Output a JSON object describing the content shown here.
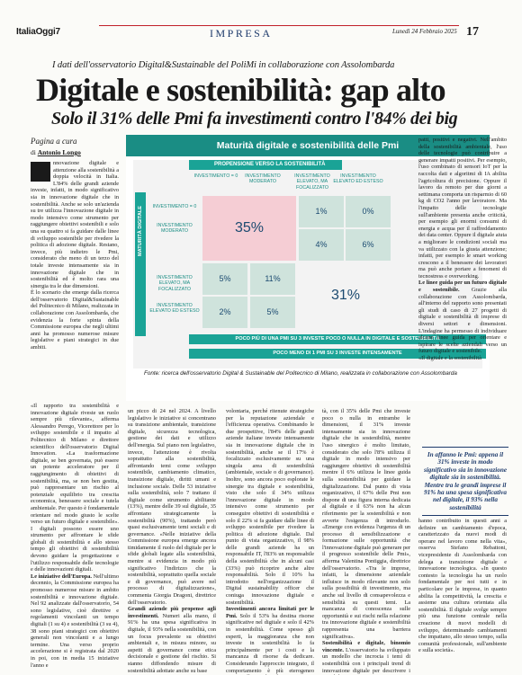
{
  "header": {
    "logo": "ItaliaOggi7",
    "section": "IMPRESA",
    "date": "Lunedì 24 Febbraio 2025",
    "page_number": "17"
  },
  "article": {
    "kicker": "I dati dell'osservatorio Digital&Sustainable del PoliMi in collaborazione con Assolombarda",
    "headline": "Digitale e sostenibilità: gap alto",
    "subhead": "Solo il 31% delle Pmi fa investimenti contro l'84% dei big",
    "page_ref": "Pagina a cura",
    "byline_prefix": "di ",
    "byline_author": "Antonio Longo",
    "col1_text": "nnovazione digitale e attenzione alla sostenibilità a doppia velocità in Italia. L'84% delle grandi aziende investe, infatti, in modo significativo sia in innovazione digitale che in sostenibilità. Anche se solo un'azienda su tre utilizza l'innovazione digitale in modo intensivo come strumento per raggiungere obiettivi sostenibili e solo una su quattro si fa guidare dalle linee di sviluppo sostenibile per rivedere la politica di adozione digitale. Restano, invece, più indietro le Pmi, considerato che meno di un terzo del totale investe intensamente sia in innovazione digitale che in sostenibilità ed è molto rara una sinergia tra le due dimensioni.",
    "col1_text_b": "È lo scenario che emerge dalla ricerca dell'osservatorio Digital&Sustainable del Politecnico di Milano, realizzata in collaborazione con Assolombarda, che evidenzia la forte spinta della Commissione europea che negli ultimi anni ha promosso numerose misure legislative e piani strategici in due ambiti.",
    "col2_text": "«Il rapporto tra sostenibilità e innovazione digitale riveste un ruolo sempre più rilevante», afferma Alessandro Perego, Vicerettore per lo sviluppo sostenibile e il impatto al Politecnico di Milano e direttore scientifico dell'osservatorio Digital Innovation. «La trasformazione digitale, se ben governata, può essere un potente acceleratore per il raggiungimento di obiettivi di sostenibilità, ma, se non ben gestita, può rappresentare un rischio al potenziale equilibrio tra crescita economica, benessere sociale e tutela ambientale. Per questo è fondamentale orientare nel modo giusto le scelte verso un futuro digitale e sostenibile». I digitali possono essere uno strumento per affrontare le sfide globali di sostenibilità e allo stesso tempo gli obiettivi di sostenibilità devono guidare la progettazione e l'utilizzo responsabile delle tecnologie e delle innovazioni digitali.",
    "col2_heading": "Le iniziative dell'Europa.",
    "col2_text_b": "Nell'ultimo decennio, la Commissione europea ha promosso numerose misure in ambito sostenibilità e innovazione digitale. Nel 92 analizzate dall'osservatorio, 54 sono legislative, cioè direttive e regolamenti vincolanti un tempo digitali (1 su 4) e sostenibilità (3 su 4), 38 sono piani strategici con obiettivi generali non vincolanti e a lungo termine. Una verso proprio accelerazione si è registrata dal 2020 in poi, con in media 15 iniziative l'anno e",
    "col3_text": "un picco di 24 nel 2024. A livello legislativo le iniziative si concentrano su transizione ambientale, transizione digitale, sicurezza tecnologica, gestione dei dati e utilizzo dell'energia. Sul piano non legislativo, invece, l'attenzione è rivolta soprattutto alla sostenibilità, affrontando temi come sviluppo sostenibile, cambiamento climatico, transizione digitale, diritti umani e inclusione sociale. Delle 53 iniziative sulla sostenibilità, solo 7 trattano il digitale come strumento abilitante (13%), mentre delle 39 sul digitale, 35 affrontano strategicamente la sostenibilità (90%), trattando però quasi esclusivamente temi sociali e di governance. «Nelle iniziative della Commissione europea emerge ancora timidamente il ruolo del digitale per le sfide globali legate alla sostenibilità, mentre si evidenzia in modo più significativo l'indirizzo che la sostenibilità, soprattutto quella sociale e di governance, può avere nel processo di digitalizzazione», commenta Giorgia Dragoni, direttrice dell'osservatorio.",
    "col3_heading": "Grandi aziende più propense agli investimenti.",
    "col3_text_b": "Numeri alla mano, il 91% ha una spesa significativa in digitale, il 93% nella sostenibilità, con un focus prevalente su obiettivi ambientali e, in misura minore, su aspetti di governance come etica decisionale e gestione del rischio. Si stanno diffondendo misure di sostenibilità adottate anche su base",
    "col4_text": "volontaria, perché ritenute strategiche per la reputazione aziendale e l'efficienza operativa. Combinando le due prospettive, l'84% delle grandi aziende italiane investe intensamente sia in innovazione digitale che in sostenibilità, anche se il 17% è focalizzato esclusivamente su una singola area di sostenibilità (ambientale, sociale o di governance). Inoltre, sono ancora poco esplorate le sinergie tra digitale e sostenibilità, visto che solo il 34% utilizza l'innovazione digitale in modo intensivo come strumento per conseguire obiettivi di sostenibilità e solo il 22% si fa guidare dalle linee di sviluppo sostenibile per rivedere la politica di adozione digitale. Dal punto di vista organizzativo, il 98% delle grandi aziende ha un responsabile IT, l'83% un responsabile della sostenibilità che in alcuni casi (33%) può ricoprire anche altre responsabilità. Solo il 10% ha introdotto nell'organizzazione il Digital sustainability officer che coniuga innovazione digitale e sostenibilità.",
    "col4_heading": "Investimenti ancora limitati per le Pmi.",
    "col4_text_b": "Solo il 53% ha destina risorse significative nel digitale e solo il 42% in sostenibilità. Come spesso gli esperti, la maggioranza che non investe in sostenibilità lo fa principalmente per i costi e la mancanza di risorse da dedicare. Considerando l'approccio integrato, il comportamento è più eterogeneo rispetto alle grandi real-",
    "col5_text": "tà, con il 35% delle Pmi che investe poco o nulla in entrambe le dimensioni, il 31% investe intensamente sia in innovazione digitale che in sostenibilità, mentre l'uso sinergico è molto limitato, considerato che solo l'8% utilizza il digitale in modo intensivo per raggiungere obiettivi di sostenibilità mentre il 6% utilizza le linee guida sulla sostenibilità per guidare la digitalizzazione. Dal punto di vista organizzativo, il 67% delle Pmi non dispone di una figura interna dedicata al digitale e il 63% non ha alcun riferimento per la sostenibilità e non avverte l'esigenza di introdurlo. «Emerge con evidenza l'urgenza di un processo di sensibilizzazione e formazione sulle opportunità che l'innovazione digitale può generare per il progresso sostenibile delle Pmi», afferma Valentina Pontiggia, direttrice dell'osservatorio. «Tra le imprese, infatti, la dimensione aziendale influisce in modo rilevante non solo sulla possibilità di investimento, ma anche sul livello di consapevolezza e sensibilità su questi temi. La mancanza di conoscenza sulle opportunità e sui rischi nella relazione tra innovazione digitale e sostenibilità rappresenta una barriera significativa».",
    "col5_heading": "Sostenibilità e digitale, binomio vincente.",
    "col5_text_b": "L'osservatorio ha sviluppato un modello che incrocia i temi di sostenibilità con i principali trend di innovazione digitale per descrivere i possibili im-",
    "col6_text": "patti, positivi e negativi. Nell'ambito della sostenibilità ambientale, l'uso delle tecnologie può contribuire a generare impatti positivi. Per esempio, l'uso combinato di sensori IoT per la raccolta dati e algoritmi di IA abilita l'agricoltura di precisione. Oppure il lavoro da remoto per due giorni a settimana comporta un risparmio di 60 kg di CO2 l'anno per lavoratore. Ma l'impatto delle tecnologie sull'ambiente presenta anche criticità, per esempio gli enormi consumi di energia e acqua per il raffreddamento dei data center. Oppure il digitale aiuta a migliorare le condizioni sociali ma va utilizzato con la giusta attenzione; infatti, per esempio le smart working crescono a il benessere dei lavoratori ma può anche portare a fenomeni di tecnostress e overworking.",
    "col6_heading": "Le linee guida per un futuro digitale e sostenibile.",
    "col6_text_b": "Grazie alla collaborazione con Assolombarda, all'interno del rapporto sono presentati gli studi di caso di 27 progetti di digitale e sostenibilità di imprese di diversi settori e dimensioni. L'indagine ha permesso di individuare alcune linee guida per orientare e ispirare le scelte aziendali verso un futuro digitale e sostenibile.",
    "col6_text_c": "«Il digitale e la sostenibilità",
    "pullquote": "In affanno le Pmi: appena il 31% investe in modo significativo sia in innovazione digitale sia in sostenibilità. Mentre tra le grandi imprese il 91% ha una spesa significativa nel digitale, il 93% nella sostenibilità",
    "col6_tail": "hanno contribuito in questi anni a definire un cambiamento d'epoca, caratterizzato da nuovi modi di operare nel lavoro come nella vita», osserva Stefano Rebattoni, vicepresidente di Assolombarda con delega a transizione digitale e innovazione tecnologica. «In questo contesto la tecnologia ha un ruolo fondamentale per noi tutti e in particolare per le imprese, in quanto abilita la competitività, la crescita e assieme una cultura orientata alla sostenibilità. Il digitale svolge sempre più una funzione centrale nella creazione di nuovi modelli di sviluppo, determinando cambiamenti che impattano, allo stesso tempo, sulla comunità professionale, sull'ambiente e sulla società»."
  },
  "chart_data": {
    "type": "table",
    "title": "Maturità digitale e sostenibilità delle Pmi",
    "column_axis_label": "PROPENSIONE VERSO LA SOSTENIBILITÀ",
    "row_axis_label": "MATURITÀ DIGITALE",
    "columns": [
      "INVESTIMENTO = 0",
      "INVESTIMENTO MODERATO",
      "INVESTIMENTO ELEVATO, MA FOCALIZZATO",
      "INVESTIMENTO ELEVATO ED ESTESO"
    ],
    "rows": [
      "INVESTIMENTO = 0",
      "INVESTIMENTO MODERATO",
      "INVESTIMENTO ELEVATO, MA FOCALIZZATO",
      "INVESTIMENTO ELEVATO ED ESTESO"
    ],
    "cells": [
      {
        "value": "35%",
        "rows": [
          0,
          1
        ],
        "cols": [
          0,
          1
        ],
        "color": "#f5cdd4"
      },
      {
        "value": "1%",
        "rows": [
          0,
          0
        ],
        "cols": [
          2,
          2
        ],
        "color": "#cfe3dc"
      },
      {
        "value": "0%",
        "rows": [
          0,
          0
        ],
        "cols": [
          3,
          3
        ],
        "color": "#cfe3dc"
      },
      {
        "value": "4%",
        "rows": [
          1,
          1
        ],
        "cols": [
          2,
          2
        ],
        "color": "#cfe3dc"
      },
      {
        "value": "6%",
        "rows": [
          1,
          1
        ],
        "cols": [
          3,
          3
        ],
        "color": "#cfe3dc"
      },
      {
        "value": "5%",
        "rows": [
          2,
          2
        ],
        "cols": [
          0,
          0
        ],
        "color": "#cfe3dc"
      },
      {
        "value": "11%",
        "rows": [
          2,
          2
        ],
        "cols": [
          1,
          1
        ],
        "color": "#cfe3dc"
      },
      {
        "value": "2%",
        "rows": [
          3,
          3
        ],
        "cols": [
          0,
          0
        ],
        "color": "#cfe3dc"
      },
      {
        "value": "5%",
        "rows": [
          3,
          3
        ],
        "cols": [
          1,
          1
        ],
        "color": "#cfe3dc"
      },
      {
        "value": "31%",
        "rows": [
          2,
          3
        ],
        "cols": [
          2,
          3
        ],
        "color": "#f3f3f3"
      }
    ],
    "footnotes": [
      "POCO PIÙ DI UNA PMI SU 3 INVESTE POCO O NULLA IN DIGITALE E SOSTENIBILITÀ",
      "POCO MENO DI 1 PMI SU 3 INVESTE INTENSAMENTE"
    ],
    "source": "Fonte: ricerca dell'osservatorio Digital & Sustainable del Politecnico di Milano, realizzata in collaborazione con Assolombarda",
    "colors": {
      "header": "#1a8d84",
      "bar": "#1aa396",
      "rose": "#f5cdd4",
      "green": "#cfe3dc",
      "value_text": "#1b4a70"
    }
  }
}
